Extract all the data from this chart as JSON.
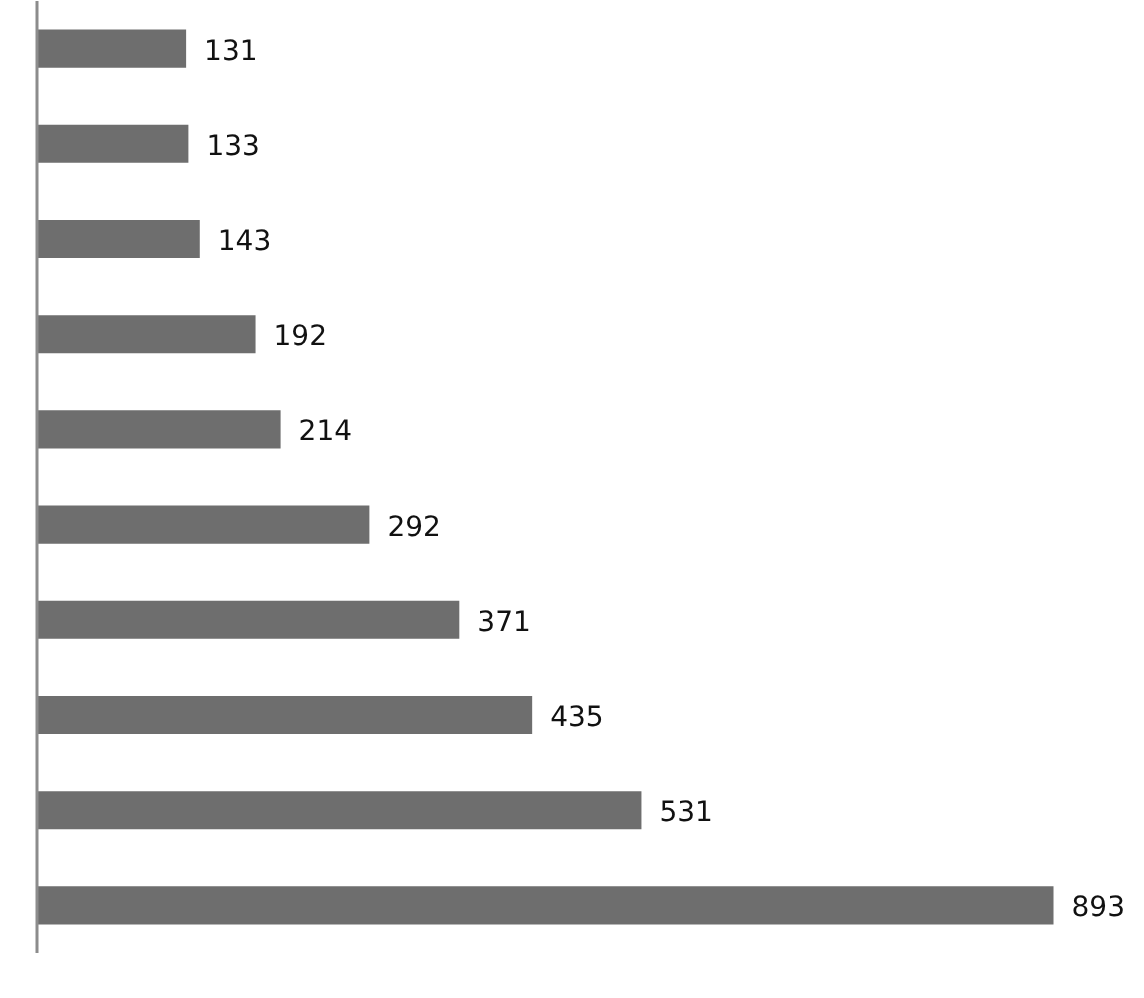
{
  "chart_data": {
    "type": "bar",
    "orientation": "horizontal",
    "categories": [
      null,
      null,
      null,
      null,
      null,
      null,
      null,
      null,
      null,
      null
    ],
    "values": [
      131,
      133,
      143,
      192,
      214,
      292,
      371,
      435,
      531,
      893
    ],
    "color": "#6e6e6e",
    "data_labels": true,
    "tick_labels": false
  }
}
